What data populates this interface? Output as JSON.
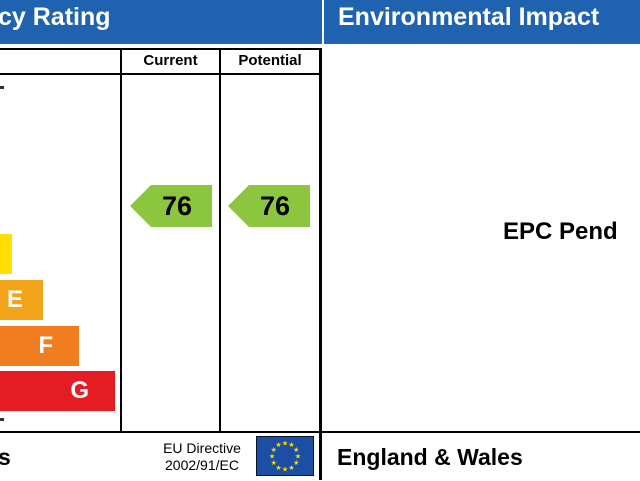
{
  "energy_panel": {
    "header_partial": "cy Rating",
    "columns": {
      "current": "Current",
      "potential": "Potential"
    },
    "bands": [
      {
        "letter": "",
        "color": "#ffdd00"
      },
      {
        "letter": "E",
        "color": "#f2a41a"
      },
      {
        "letter": "F",
        "color": "#f07d1f"
      },
      {
        "letter": "G",
        "color": "#e31d23"
      }
    ],
    "current_rating": "76",
    "potential_rating": "76",
    "rating_color": "#8cc63f",
    "footer_partial": "s",
    "eu_directive": {
      "line1": "EU Directive",
      "line2": "2002/91/EC"
    }
  },
  "environmental_panel": {
    "header_partial": "Environmental Impact",
    "pending_text": "EPC Pend",
    "footer_text": "England & Wales"
  },
  "colors": {
    "header_blue": "#1f62b0",
    "eu_flag_blue": "#1c4fa4",
    "eu_star": "#ffdd00"
  }
}
